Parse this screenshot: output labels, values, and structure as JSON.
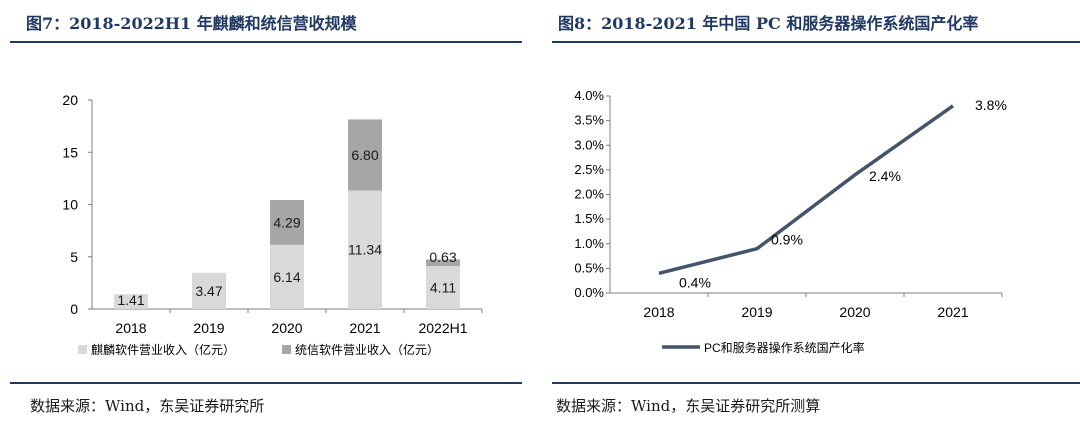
{
  "figures": [
    {
      "title": "图7：2018-2022H1 年麒麟和统信营收规模",
      "source": "数据来源：Wind，东吴证券研究所"
    },
    {
      "title": "图8：2018-2021 年中国 PC 和服务器操作系统国产化率",
      "source": "数据来源：Wind，东吴证券研究所测算"
    }
  ],
  "chart_data": [
    {
      "type": "bar",
      "stacked": true,
      "categories": [
        "2018",
        "2019",
        "2020",
        "2021",
        "2022H1"
      ],
      "series": [
        {
          "name": "麒麟软件营业收入（亿元）",
          "values": [
            1.41,
            3.47,
            6.14,
            11.34,
            4.11
          ],
          "labels": [
            "1.41",
            "3.47",
            "6.14",
            "11.34",
            "4.11"
          ],
          "color": "#d9d9d9"
        },
        {
          "name": "统信软件营业收入（亿元）",
          "values": [
            null,
            null,
            4.29,
            6.8,
            0.63
          ],
          "labels": [
            "",
            "",
            "4.29",
            "6.80",
            "0.63"
          ],
          "color": "#a6a6a6"
        }
      ],
      "y_ticks": [
        "0",
        "5",
        "10",
        "15",
        "20"
      ],
      "ylim": [
        0,
        20
      ],
      "legend": "bottom",
      "grid": false
    },
    {
      "type": "line",
      "categories": [
        "2018",
        "2019",
        "2020",
        "2021"
      ],
      "series": [
        {
          "name": "PC和服务器操作系统国产化率",
          "values": [
            0.4,
            0.9,
            2.4,
            3.8
          ],
          "labels": [
            "0.4%",
            "0.9%",
            "2.4%",
            "3.8%"
          ],
          "color": "#44546a"
        }
      ],
      "y_ticks": [
        "0.0%",
        "0.5%",
        "1.0%",
        "1.5%",
        "2.0%",
        "2.5%",
        "3.0%",
        "3.5%",
        "4.0%"
      ],
      "ylim": [
        0,
        4
      ],
      "legend": "bottom",
      "grid": false
    }
  ]
}
